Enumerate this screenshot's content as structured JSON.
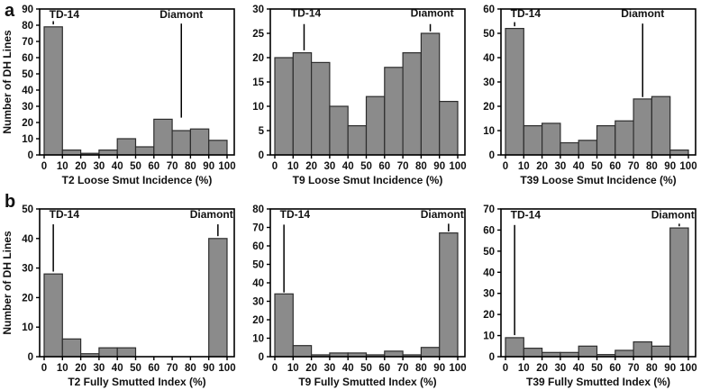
{
  "figure": {
    "row_labels": [
      "a",
      "b"
    ],
    "colors": {
      "bar_fill": "#8b8b8b",
      "bar_stroke": "#2d2d2d",
      "axis": "#000000",
      "text": "#111111"
    }
  },
  "chart_data": [
    {
      "type": "bar",
      "id": "t2-loose-smut",
      "xlabel": "T2 Loose Smut Incidence (%)",
      "ylabel": "Number of DH Lines",
      "bin_width": 10,
      "categories": [
        "0-10",
        "10-20",
        "20-30",
        "30-40",
        "40-50",
        "50-60",
        "60-70",
        "70-80",
        "80-90",
        "90-100"
      ],
      "values": [
        79,
        3,
        1,
        3,
        10,
        5,
        22,
        15,
        16,
        9
      ],
      "x_ticks": [
        0,
        10,
        20,
        30,
        40,
        50,
        60,
        70,
        80,
        90,
        100
      ],
      "ylim": [
        0,
        90
      ],
      "y_tick_step": 10,
      "annotations": [
        {
          "label": "TD-14",
          "x_line": 5,
          "x_label": 11,
          "y_text": 84.5,
          "y_line": [
            82.5,
            80.5
          ]
        },
        {
          "label": "Diamont",
          "x_line": 75,
          "x_label": 75,
          "y_text": 84.5,
          "y_line": [
            81,
            23
          ]
        }
      ]
    },
    {
      "type": "bar",
      "id": "t9-loose-smut",
      "xlabel": "T9 Loose Smut Incidence (%)",
      "ylabel": "",
      "bin_width": 10,
      "categories": [
        "0-10",
        "10-20",
        "20-30",
        "30-40",
        "40-50",
        "50-60",
        "60-70",
        "70-80",
        "80-90",
        "90-100"
      ],
      "values": [
        20,
        21,
        19,
        10,
        6,
        12,
        18,
        21,
        25,
        11
      ],
      "x_ticks": [
        0,
        10,
        20,
        30,
        40,
        50,
        60,
        70,
        80,
        90,
        100
      ],
      "ylim": [
        0,
        30
      ],
      "y_tick_step": 5,
      "annotations": [
        {
          "label": "TD-14",
          "x_line": 16,
          "x_label": 17,
          "y_text": 28.4,
          "y_line": [
            26.9,
            21.5
          ]
        },
        {
          "label": "Diamont",
          "x_line": 85,
          "x_label": 86,
          "y_text": 28.4,
          "y_line": [
            26.9,
            25.4
          ]
        }
      ]
    },
    {
      "type": "bar",
      "id": "t39-loose-smut",
      "xlabel": "T39 Loose Smut Incidence (%)",
      "ylabel": "",
      "bin_width": 10,
      "categories": [
        "0-10",
        "10-20",
        "20-30",
        "30-40",
        "40-50",
        "50-60",
        "60-70",
        "70-80",
        "80-90",
        "90-100"
      ],
      "values": [
        52,
        12,
        13,
        5,
        6,
        12,
        14,
        23,
        24,
        2
      ],
      "x_ticks": [
        0,
        10,
        20,
        30,
        40,
        50,
        60,
        70,
        80,
        90,
        100
      ],
      "ylim": [
        0,
        60
      ],
      "y_tick_step": 10,
      "annotations": [
        {
          "label": "TD-14",
          "x_line": 5,
          "x_label": 11,
          "y_text": 56.6,
          "y_line": [
            54.6,
            52.9
          ]
        },
        {
          "label": "Diamont",
          "x_line": 75,
          "x_label": 75,
          "y_text": 56.6,
          "y_line": [
            54,
            23.8
          ]
        }
      ]
    },
    {
      "type": "bar",
      "id": "t2-fully-smutted",
      "xlabel": "T2 Fully Smutted Index (%)",
      "ylabel": "Number of DH Lines",
      "bin_width": 10,
      "categories": [
        "0-10",
        "10-20",
        "20-30",
        "30-40",
        "40-50",
        "50-60",
        "60-70",
        "70-80",
        "80-90",
        "90-100"
      ],
      "values": [
        28,
        6,
        1,
        3,
        3,
        0,
        0,
        0,
        0,
        40
      ],
      "x_ticks": [
        0,
        10,
        20,
        30,
        40,
        50,
        60,
        70,
        80,
        90,
        100
      ],
      "ylim": [
        0,
        50
      ],
      "y_tick_step": 10,
      "annotations": [
        {
          "label": "TD-14",
          "x_line": 5,
          "x_label": 11,
          "y_text": 47,
          "y_line": [
            44.8,
            28.8
          ]
        },
        {
          "label": "Diamont",
          "x_line": 95,
          "x_label": 91.5,
          "y_text": 47,
          "y_line": [
            44.8,
            40.8
          ]
        }
      ]
    },
    {
      "type": "bar",
      "id": "t9-fully-smutted",
      "xlabel": "T9 Fully Smutted Index (%)",
      "ylabel": "",
      "bin_width": 10,
      "categories": [
        "0-10",
        "10-20",
        "20-30",
        "30-40",
        "40-50",
        "50-60",
        "60-70",
        "70-80",
        "80-90",
        "90-100"
      ],
      "values": [
        34,
        6,
        1,
        2,
        2,
        1,
        3,
        1,
        5,
        67
      ],
      "x_ticks": [
        0,
        10,
        20,
        30,
        40,
        50,
        60,
        70,
        80,
        90,
        100
      ],
      "ylim": [
        0,
        80
      ],
      "y_tick_step": 10,
      "annotations": [
        {
          "label": "TD-14",
          "x_line": 5,
          "x_label": 11,
          "y_text": 75.2,
          "y_line": [
            71.5,
            34.8
          ]
        },
        {
          "label": "Diamont",
          "x_line": 95,
          "x_label": 91.5,
          "y_text": 75.2,
          "y_line": [
            72,
            67.8
          ]
        }
      ]
    },
    {
      "type": "bar",
      "id": "t39-fully-smutted",
      "xlabel": "T39 Fully Smutted Index (%)",
      "ylabel": "",
      "bin_width": 10,
      "categories": [
        "0-10",
        "10-20",
        "20-30",
        "30-40",
        "40-50",
        "50-60",
        "60-70",
        "70-80",
        "80-90",
        "90-100"
      ],
      "values": [
        9,
        4,
        2,
        2,
        5,
        1,
        3,
        7,
        5,
        61
      ],
      "x_ticks": [
        0,
        10,
        20,
        30,
        40,
        50,
        60,
        70,
        80,
        90,
        100
      ],
      "ylim": [
        0,
        70
      ],
      "y_tick_step": 10,
      "annotations": [
        {
          "label": "TD-14",
          "x_line": 5,
          "x_label": 11,
          "y_text": 65.6,
          "y_line": [
            62.4,
            10.2
          ]
        },
        {
          "label": "Diamont",
          "x_line": 95,
          "x_label": 91.5,
          "y_text": 65.6,
          "y_line": [
            63,
            61.8
          ]
        }
      ]
    }
  ]
}
